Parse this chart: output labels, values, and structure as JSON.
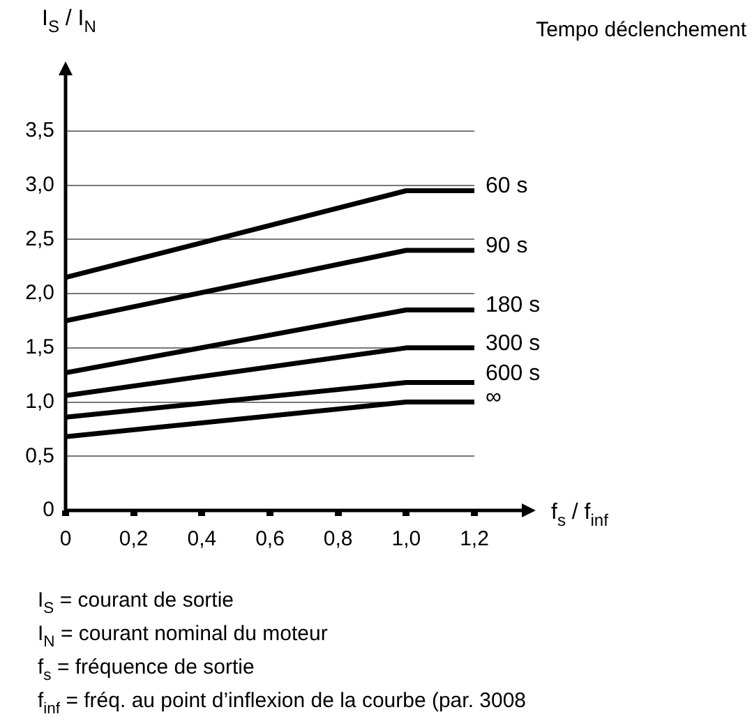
{
  "chart_data": {
    "type": "line",
    "ylabel": "I$_{S}$ / I$_{N}$",
    "xlabel": "f$_{s}$ / f$_{inf}$",
    "legend_title": "Tempo déclenchement",
    "x": [
      0,
      1.0,
      1.2
    ],
    "series": [
      {
        "name": "60 s",
        "color": "#000000",
        "values": [
          2.15,
          2.95,
          2.95
        ]
      },
      {
        "name": "90 s",
        "color": "#000000",
        "values": [
          1.75,
          2.4,
          2.4
        ]
      },
      {
        "name": "180 s",
        "color": "#000000",
        "values": [
          1.27,
          1.85,
          1.85
        ]
      },
      {
        "name": "300 s",
        "color": "#000000",
        "values": [
          1.06,
          1.5,
          1.5
        ]
      },
      {
        "name": "600 s",
        "color": "#000000",
        "values": [
          0.86,
          1.18,
          1.18
        ]
      },
      {
        "name": "∞",
        "color": "#000000",
        "values": [
          0.68,
          1.0,
          1.0
        ]
      }
    ],
    "xlim": [
      0,
      1.2
    ],
    "xticks": [
      0,
      {
        "value": 0.2,
        "label": "0,2"
      },
      {
        "value": 0.4,
        "label": "0,4"
      },
      {
        "value": 0.6,
        "label": "0,6"
      },
      {
        "value": 0.8,
        "label": "0,8"
      },
      {
        "value": 1.0,
        "label": "1,0"
      },
      {
        "value": 1.2,
        "label": "1,2"
      }
    ],
    "ylim": [
      0,
      3.5
    ],
    "yticks": [
      0,
      {
        "value": 0.5,
        "label": "0,5"
      },
      {
        "value": 1.0,
        "label": "1,0"
      },
      {
        "value": 1.5,
        "label": "1,5"
      },
      {
        "value": 2.0,
        "label": "2,0"
      },
      {
        "value": 2.5,
        "label": "2,5"
      },
      {
        "value": 3.0,
        "label": "3,0"
      },
      {
        "value": 3.5,
        "label": "3,5"
      }
    ],
    "grid": "y",
    "legend": false,
    "marker": "none",
    "line_style": "solid",
    "annotations": [
      "I$_{S}$ = courant de sortie",
      "I$_{N}$ = courant nominal du moteur",
      "f$_{s}$ = fréquence de sortie",
      "f$_{inf}$ = fréq. au point d’inflexion de la courbe (par. 3008"
    ]
  }
}
